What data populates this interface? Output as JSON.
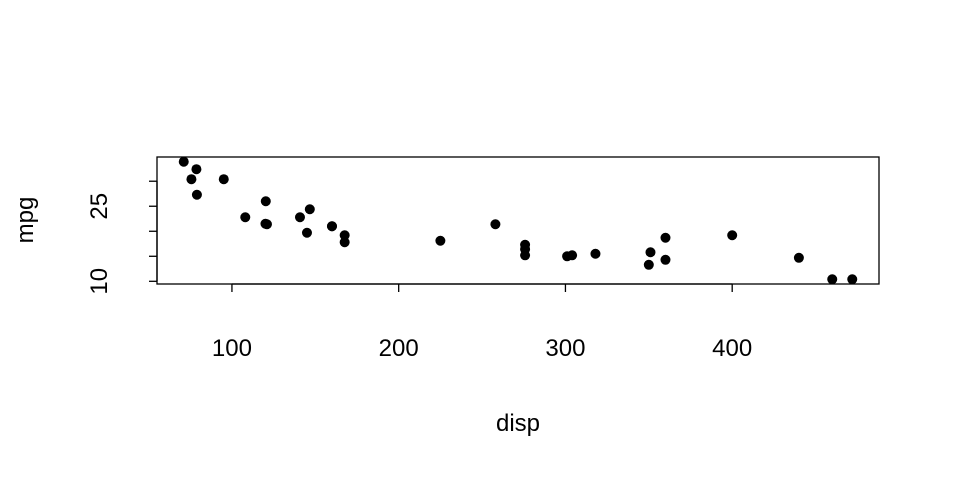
{
  "chart_data": {
    "type": "scatter",
    "title": "",
    "xlabel": "disp",
    "ylabel": "mpg",
    "xlim": [
      55.06,
      488.04
    ],
    "ylim": [
      9.46,
      34.84
    ],
    "xticks": [
      100,
      200,
      300,
      400
    ],
    "yticks": [
      10,
      15,
      20,
      25,
      30
    ],
    "ytick_labels": [
      "10",
      "",
      "",
      "25",
      ""
    ],
    "grid": false,
    "point_color": "#000000",
    "x": [
      160,
      160,
      108,
      258,
      360,
      225,
      360,
      146.7,
      140.8,
      167.6,
      167.6,
      275.8,
      275.8,
      275.8,
      472,
      460,
      440,
      78.7,
      75.7,
      71.1,
      120.1,
      318,
      304,
      350,
      400,
      79,
      120.3,
      95.1,
      351,
      145,
      301,
      121
    ],
    "y": [
      21.0,
      21.0,
      22.8,
      21.4,
      18.7,
      18.1,
      14.3,
      24.4,
      22.8,
      19.2,
      17.8,
      16.4,
      17.3,
      15.2,
      10.4,
      10.4,
      14.7,
      32.4,
      30.4,
      33.9,
      21.5,
      15.5,
      15.2,
      13.3,
      19.2,
      27.3,
      26.0,
      30.4,
      15.8,
      19.7,
      15.0,
      21.4
    ]
  }
}
